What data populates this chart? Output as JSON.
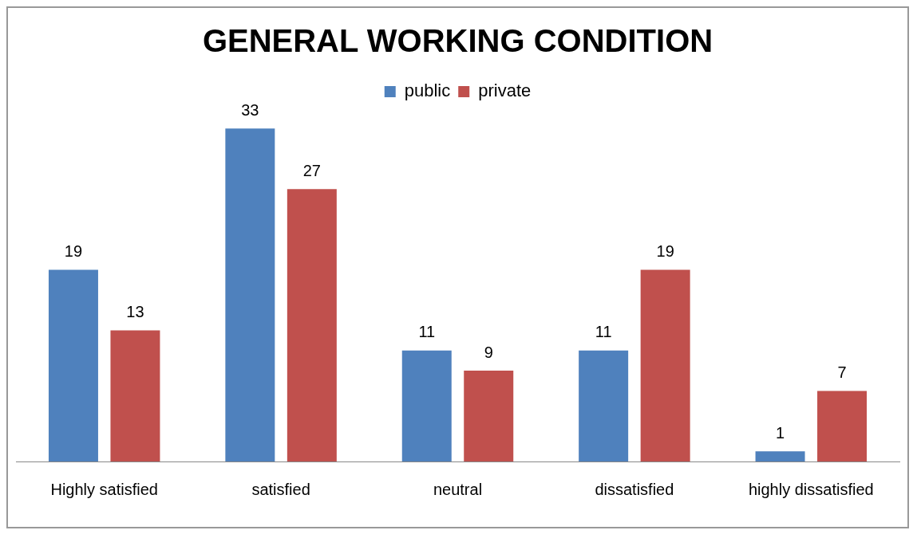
{
  "chart_data": {
    "type": "bar",
    "title": "GENERAL WORKING CONDITION",
    "categories": [
      "Highly satisfied",
      "satisfied",
      "neutral",
      "dissatisfied",
      "highly dissatisfied"
    ],
    "series": [
      {
        "name": "public",
        "color": "#4f81bd",
        "values": [
          19,
          33,
          11,
          11,
          1
        ]
      },
      {
        "name": "private",
        "color": "#c0504d",
        "values": [
          13,
          27,
          9,
          19,
          7
        ]
      }
    ],
    "data_labels": true,
    "legend": "top",
    "grid": false,
    "tick_labels": "x"
  }
}
